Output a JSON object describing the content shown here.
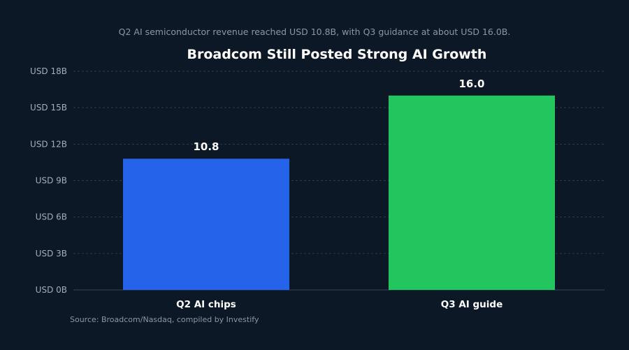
{
  "chart_data": {
    "type": "bar",
    "subtitle": "Q2 AI semiconductor revenue reached USD 10.8B, with Q3 guidance at about USD 16.0B.",
    "title": "Broadcom Still Posted Strong AI Growth",
    "categories": [
      "Q2 AI chips",
      "Q3 AI guide"
    ],
    "values": [
      10.8,
      16.0
    ],
    "value_labels": [
      "10.8",
      "16.0"
    ],
    "colors": [
      "#2563eb",
      "#22c55e"
    ],
    "ylim": [
      0,
      18
    ],
    "yticks": [
      0,
      3,
      6,
      9,
      12,
      15,
      18
    ],
    "ytick_labels": [
      "USD 0B",
      "USD 3B",
      "USD 6B",
      "USD 9B",
      "USD 12B",
      "USD 15B",
      "USD 18B"
    ],
    "xlabel": "",
    "ylabel": "",
    "grid": true,
    "source": "Source: Broadcom/Nasdaq, compiled by Investify"
  },
  "colors": {
    "background": "#0d1826",
    "grid": "#2a3a4d",
    "text_primary": "#ffffff",
    "text_secondary": "#8a97a8"
  }
}
